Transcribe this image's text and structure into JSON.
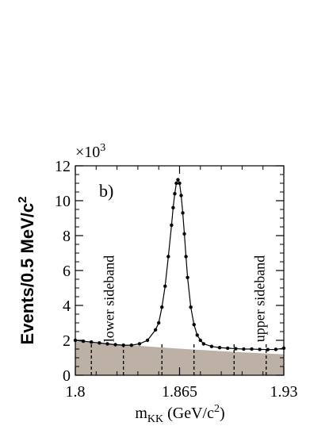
{
  "chart_data": {
    "type": "scatter",
    "panel_label": "b)",
    "ylabel": "Events/0.5 MeV/c",
    "ylabel_sup": "2",
    "xlabel_main": "m",
    "xlabel_sub": "KK",
    "xlabel_units": " (GeV/c",
    "xlabel_units_sup": "2",
    "xlabel_units_close": ")",
    "y_multiplier_prefix": "×10",
    "y_multiplier_exp": "3",
    "xlim": [
      1.8,
      1.93
    ],
    "ylim": [
      0,
      12
    ],
    "x_ticks": [
      {
        "value": 1.8,
        "label": "1.8"
      },
      {
        "value": 1.865,
        "label": "1.865"
      },
      {
        "value": 1.93,
        "label": "1.93"
      }
    ],
    "y_ticks": [
      {
        "value": 0,
        "label": "0"
      },
      {
        "value": 2,
        "label": "2"
      },
      {
        "value": 4,
        "label": "4"
      },
      {
        "value": 6,
        "label": "6"
      },
      {
        "value": 8,
        "label": "8"
      },
      {
        "value": 10,
        "label": "10"
      },
      {
        "value": 12,
        "label": "12"
      }
    ],
    "annotations": [
      {
        "text": "lower sideband",
        "x": 1.821
      },
      {
        "text": "upper sideband",
        "x": 1.915
      }
    ],
    "sideband_lines_x": [
      1.81,
      1.83,
      1.854,
      1.874,
      1.899,
      1.919
    ],
    "series": [
      {
        "type": "points",
        "x": [
          1.8,
          1.805,
          1.81,
          1.815,
          1.82,
          1.825,
          1.83,
          1.835,
          1.84,
          1.845,
          1.85,
          1.852,
          1.854,
          1.856,
          1.858,
          1.86,
          1.861,
          1.862,
          1.863,
          1.864,
          1.865,
          1.866,
          1.867,
          1.868,
          1.869,
          1.87,
          1.872,
          1.874,
          1.876,
          1.878,
          1.88,
          1.885,
          1.89,
          1.895,
          1.9,
          1.905,
          1.91,
          1.915,
          1.92,
          1.925,
          1.93
        ],
        "y": [
          2.0,
          1.95,
          1.9,
          1.85,
          1.8,
          1.75,
          1.72,
          1.72,
          1.8,
          2.0,
          2.6,
          3.0,
          3.9,
          5.1,
          6.8,
          8.6,
          9.6,
          10.4,
          11.0,
          11.2,
          11.0,
          10.3,
          9.3,
          8.1,
          6.8,
          5.6,
          3.9,
          2.9,
          2.3,
          2.0,
          1.8,
          1.65,
          1.58,
          1.55,
          1.52,
          1.5,
          1.5,
          1.48,
          1.47,
          1.48,
          1.55
        ]
      },
      {
        "type": "area",
        "color": "#bdb1a6",
        "x": [
          1.8,
          1.83,
          1.86,
          1.9,
          1.93
        ],
        "y": [
          1.95,
          1.75,
          1.55,
          1.33,
          1.2
        ]
      }
    ]
  }
}
